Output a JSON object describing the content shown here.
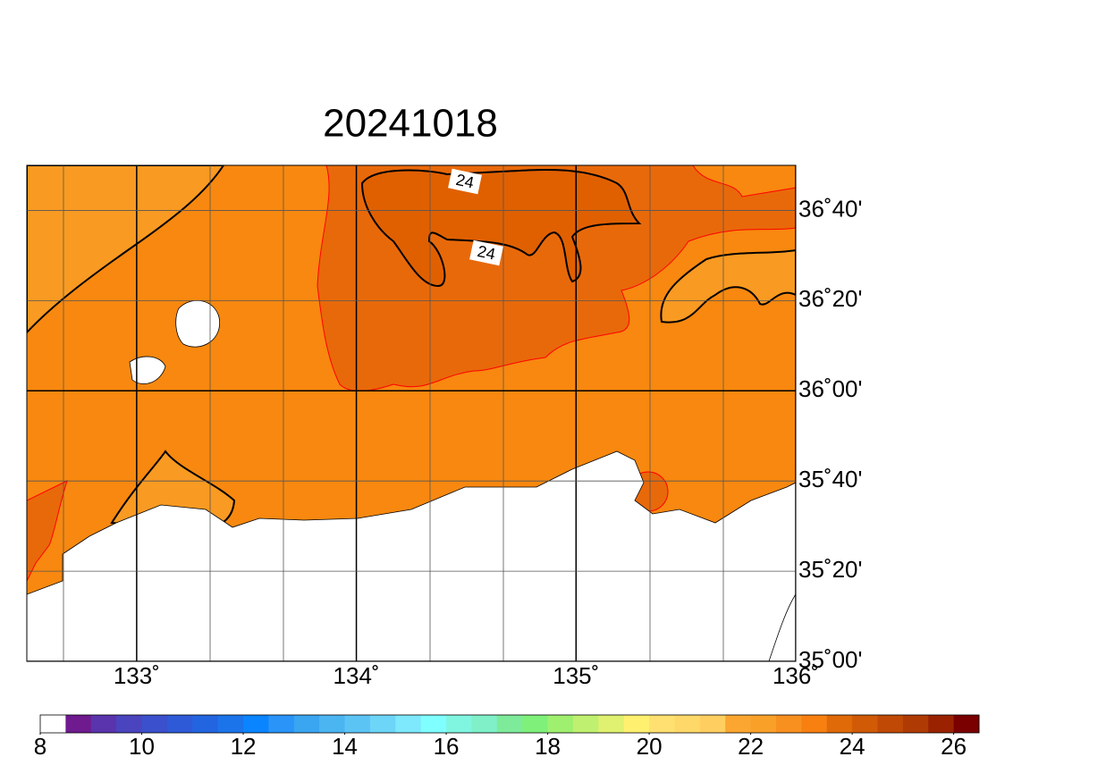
{
  "map": {
    "title": "20241018",
    "lonlim": [
      132.5,
      136
    ],
    "latlim": [
      35,
      36.8333
    ],
    "lonticks": [
      {
        "value": 133,
        "label": "133˚"
      },
      {
        "value": 134,
        "label": "134˚"
      },
      {
        "value": 135,
        "label": "135˚"
      },
      {
        "value": 136,
        "label": "136˚"
      }
    ],
    "latticks": [
      {
        "value": 35,
        "label": "35˚00'"
      },
      {
        "value": 35.3333,
        "label": "35˚20'"
      },
      {
        "value": 35.6667,
        "label": "35˚40'"
      },
      {
        "value": 36,
        "label": "36˚00'"
      },
      {
        "value": 36.3333,
        "label": "36˚20'"
      },
      {
        "value": 36.6667,
        "label": "36˚40'"
      }
    ],
    "contour_labels": [
      "24",
      "24"
    ],
    "colorbar": {
      "lim": [
        8,
        26.5
      ],
      "ticks": [
        8,
        10,
        12,
        14,
        16,
        18,
        20,
        22,
        24,
        26
      ],
      "colors": [
        "#ffffff",
        "#6f1a8f",
        "#5a34ac",
        "#4a44be",
        "#3b50cc",
        "#2e5ad8",
        "#2365e0",
        "#1b74ea",
        "#0a84ff",
        "#2a94f8",
        "#3aa5f0",
        "#4bb5f2",
        "#5cc4f5",
        "#6dd5f8",
        "#7ee8fc",
        "#7fffff",
        "#80f5e0",
        "#7ff0c8",
        "#7eeb9a",
        "#7ff07a",
        "#a0f070",
        "#c0f070",
        "#e0f070",
        "#fff070",
        "#ffe070",
        "#ffd86a",
        "#ffce60",
        "#faa630",
        "#f8a028",
        "#f89020",
        "#f88010",
        "#e06a08",
        "#d05a06",
        "#c04a05",
        "#b03a04",
        "#9a2200",
        "#7a0000"
      ]
    }
  }
}
